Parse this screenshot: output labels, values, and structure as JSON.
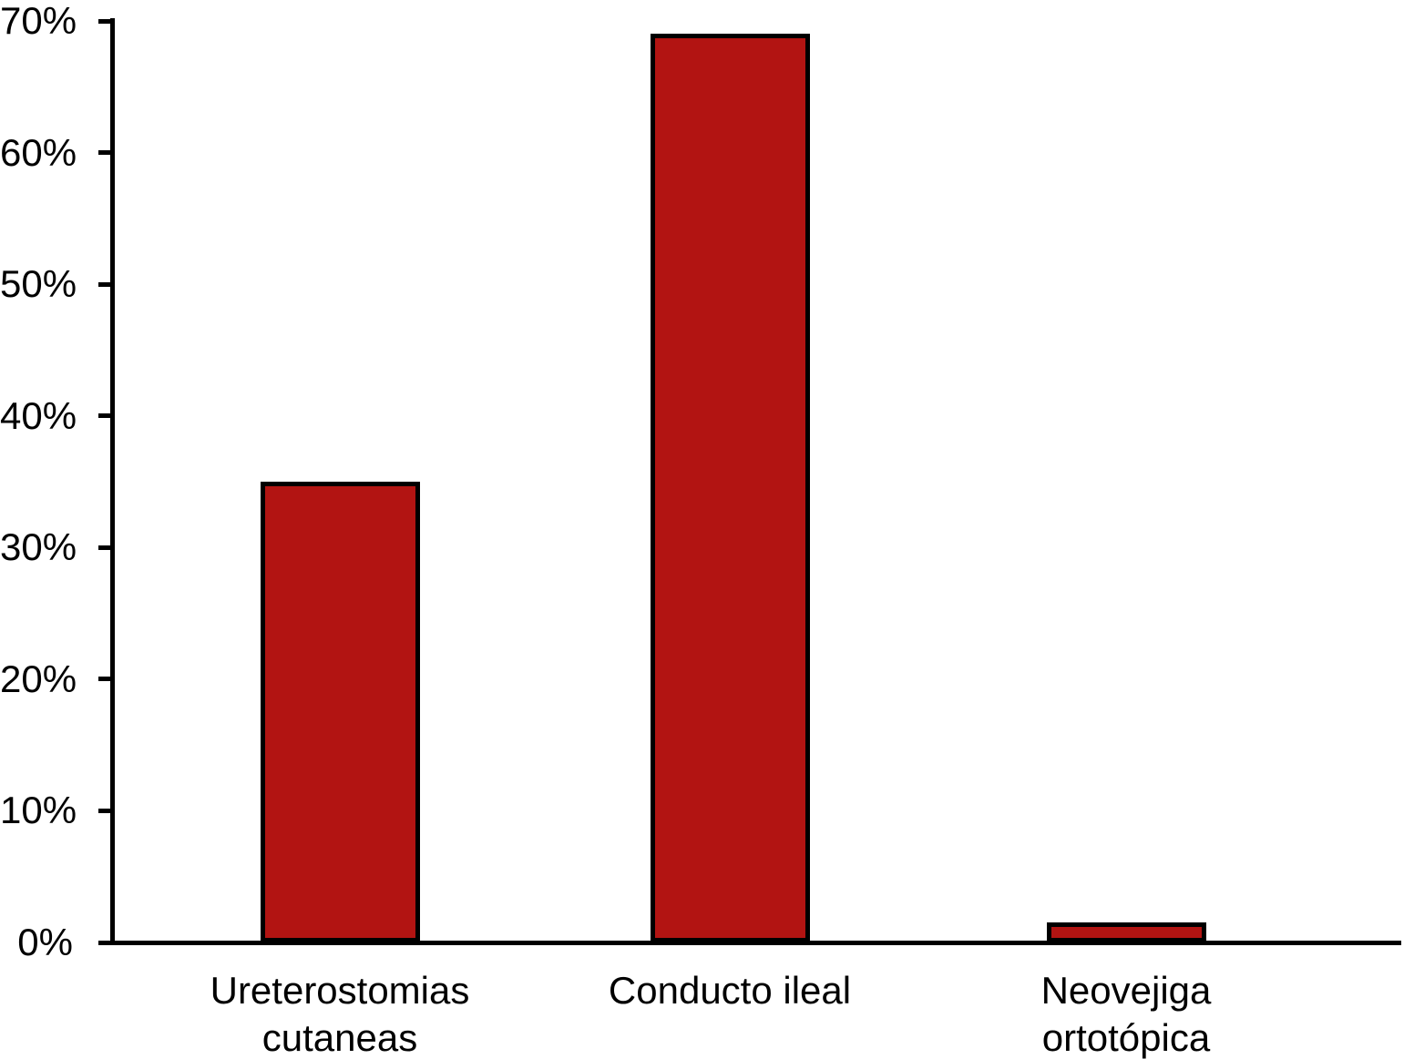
{
  "chart_data": {
    "type": "bar",
    "categories": [
      "Ureterostomias cutaneas",
      "Conducto ileal",
      "Neovejiga ortotópica"
    ],
    "category_lines": [
      [
        "Ureterostomias",
        "cutaneas"
      ],
      [
        "Conducto ileal"
      ],
      [
        "Neovejiga",
        "ortotópica"
      ]
    ],
    "values": [
      35,
      69,
      1.5
    ],
    "value_unit": "%",
    "ylim": [
      0,
      70
    ],
    "ytick_values": [
      0,
      10,
      20,
      30,
      40,
      50,
      60,
      70
    ],
    "ytick_labels": [
      "0%",
      "10%",
      "20%",
      "30%",
      "40%",
      "50%",
      "60%",
      "70%"
    ],
    "grid": false,
    "legend": false,
    "bar_fill_color": "#b21412",
    "bar_border_color": "#000000",
    "axis_color": "#000000",
    "text_color": "#000000",
    "background_color": "#ffffff"
  }
}
